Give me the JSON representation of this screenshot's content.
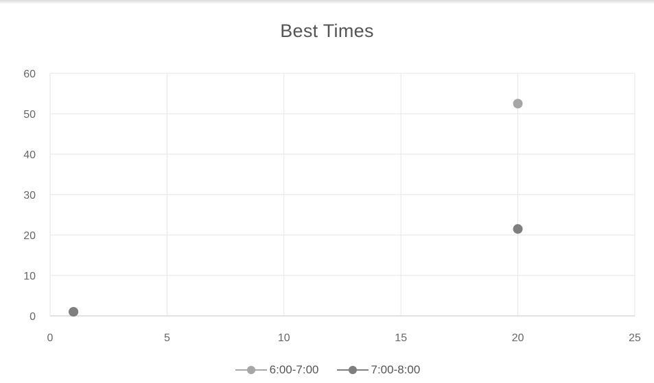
{
  "chart_data": {
    "type": "scatter",
    "title": "Best Times",
    "xlim": [
      0,
      25
    ],
    "ylim": [
      0,
      60
    ],
    "x_ticks": [
      0,
      5,
      10,
      15,
      20,
      25
    ],
    "y_ticks": [
      0,
      10,
      20,
      30,
      40,
      50,
      60
    ],
    "grid": true,
    "legend_position": "bottom",
    "series": [
      {
        "name": "6:00-7:00",
        "color": "#a6a6a6",
        "points": [
          [
            1,
            1
          ],
          [
            20,
            52.5
          ]
        ]
      },
      {
        "name": "7:00-8:00",
        "color": "#7f7f7f",
        "points": [
          [
            1,
            1
          ],
          [
            20,
            21.5
          ]
        ]
      }
    ]
  }
}
